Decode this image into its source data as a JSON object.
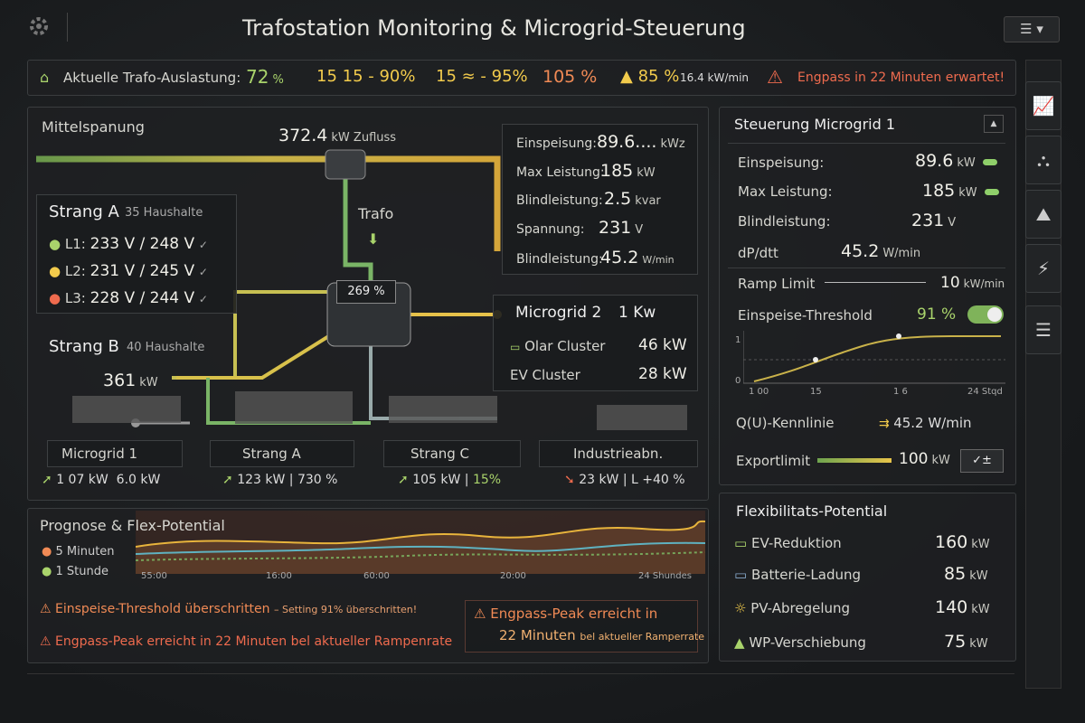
{
  "header": {
    "title": "Trafostation Monitoring & Microgrid-Steuerung"
  },
  "status_bar": {
    "label": "Aktuelle Trafo-Auslastung:",
    "value": "72",
    "unit": "%",
    "items": [
      "15 15 - 90%",
      "15 ≈ - 95%",
      "105 %",
      "85 %"
    ],
    "rate": "16.4 kW/min",
    "alert": "Engpass in 22 Minuten erwartet!"
  },
  "network": {
    "title": "Mittelspanung",
    "inflow_value": "372.4",
    "inflow_unit": "kW Zufluss",
    "info": [
      {
        "label": "Einspeisung:",
        "value": "89.6....",
        "unit": "kWz"
      },
      {
        "label": "Max Leistung:",
        "value": "185",
        "unit": "kW"
      },
      {
        "label": "Blindleistung:",
        "value": "2.5",
        "unit": "kvar"
      },
      {
        "label": "Spannung:",
        "value": "231",
        "unit": "V"
      },
      {
        "label": "Blindleistung:",
        "value": "45.2",
        "unit": "W/min"
      }
    ],
    "trafo_label": "Trafo",
    "trafo_badge": "269 %",
    "strang_a": {
      "title": "Strang A",
      "subtitle": "35 Haushalte",
      "phases": [
        {
          "name": "L1:",
          "value": "233 V / 248 V"
        },
        {
          "name": "L2:",
          "value": "231 V / 245 V"
        },
        {
          "name": "L3:",
          "value": "228 V / 244 V"
        }
      ]
    },
    "strang_b": {
      "title": "Strang B",
      "subtitle": "40 Haushalte",
      "value": "361",
      "unit": "kW"
    },
    "microgrid2": {
      "title": "Microgrid 2",
      "value": "1 Kw",
      "rows": [
        {
          "label": "Olar Cluster",
          "value": "46 kW"
        },
        {
          "label": "EV Cluster",
          "value": "28 kW"
        }
      ]
    },
    "nodes": [
      {
        "label": "Microgrid 1",
        "power": "1 07 kW",
        "extra": "6.0 kW"
      },
      {
        "label": "Strang A",
        "power": "123 kW",
        "extra": "730 %"
      },
      {
        "label": "Strang C",
        "power": "105 kW",
        "extra": "15%"
      },
      {
        "label": "Industrieabn.",
        "power": "23 kW",
        "extra": "L +40 %"
      }
    ]
  },
  "forecast": {
    "title": "Prognose & Flex-Potential",
    "legend": [
      "5 Minuten",
      "1 Stunde"
    ],
    "x_labels": [
      "55:00",
      "16:00",
      "60:00",
      "20:00",
      "24 Shundes"
    ],
    "alerts": [
      {
        "text": "Einspeise-Threshold überschritten",
        "detail": "– Setting 91% überschritten!"
      },
      {
        "text": "Engpass-Peak erreicht in 22 Minuten bel aktueller Rampenrate"
      }
    ],
    "callout": {
      "line1": "Engpass-Peak erreicht in",
      "line2": "22 Minuten",
      "line3": "bel aktueller Ramperrate"
    }
  },
  "control": {
    "title": "Steuerung Microgrid 1",
    "rows": [
      {
        "label": "Einspeisung:",
        "value": "89.6",
        "unit": "kW"
      },
      {
        "label": "Max Leistung:",
        "value": "185",
        "unit": "kW"
      },
      {
        "label": "Blindleistung:",
        "value": "231",
        "unit": "V"
      },
      {
        "label": "dP/dtt",
        "value": "45.2",
        "unit": "W/min"
      }
    ],
    "ramp": {
      "label": "Ramp Limit",
      "value": "10",
      "unit": "kW/min"
    },
    "threshold": {
      "label": "Einspeise-Threshold",
      "value": "91 %"
    },
    "curve": {
      "y_labels": [
        "1",
        "0"
      ],
      "x_labels": [
        "1 00",
        "15",
        "1 6",
        "24 Stqd"
      ]
    },
    "qu": {
      "label": "Q(U)-Kennlinie",
      "value": "45.2 W/min"
    },
    "export": {
      "label": "Exportlimit",
      "value": "100",
      "unit": "kW"
    }
  },
  "flex": {
    "title": "Flexibilitats-Potential",
    "rows": [
      {
        "label": "EV-Reduktion",
        "value": "160",
        "unit": "kW"
      },
      {
        "label": "Batterie-Ladung",
        "value": "85",
        "unit": "kW"
      },
      {
        "label": "PV-Abregelung",
        "value": "140",
        "unit": "kW"
      },
      {
        "label": "WP-Verschiebung",
        "value": "75",
        "unit": "kW"
      }
    ]
  }
}
